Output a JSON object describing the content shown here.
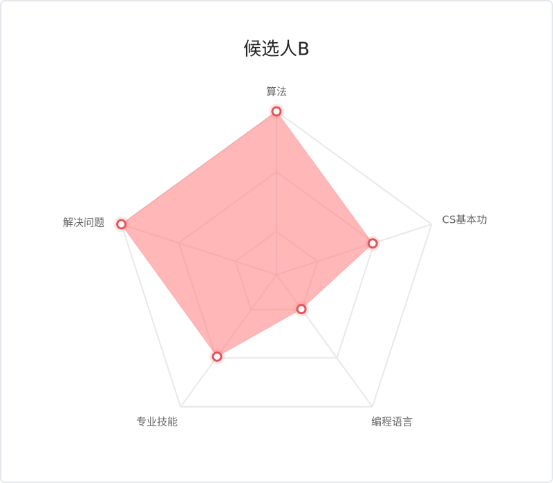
{
  "chart_data": {
    "type": "radar",
    "title": "候选人B",
    "indicators": [
      "算法",
      "CS基本功",
      "编程语言",
      "专业技能",
      "解决问题"
    ],
    "max": 100,
    "series": [
      {
        "name": "候选人B",
        "color": "#ff7b7b",
        "values": [
          100,
          62,
          26,
          62,
          100
        ]
      }
    ]
  }
}
